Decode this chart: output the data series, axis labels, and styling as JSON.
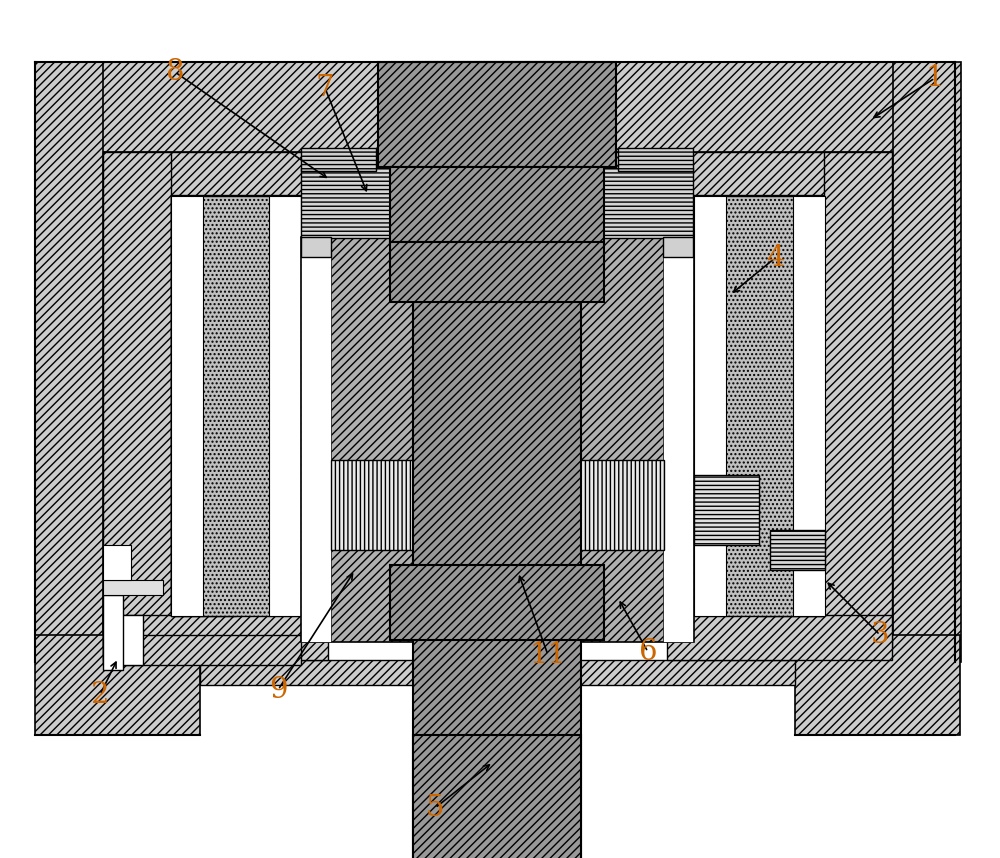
{
  "background_color": "#ffffff",
  "line_color": "#000000",
  "label_color": "#cc6600",
  "fig_width": 10.0,
  "fig_height": 8.58,
  "labels_data": [
    [
      "1",
      935,
      78,
      870,
      120
    ],
    [
      "2",
      100,
      695,
      118,
      658
    ],
    [
      "3",
      880,
      635,
      825,
      580
    ],
    [
      "4",
      775,
      258,
      730,
      295
    ],
    [
      "5",
      435,
      808,
      493,
      762
    ],
    [
      "6",
      648,
      652,
      618,
      598
    ],
    [
      "7",
      325,
      88,
      368,
      195
    ],
    [
      "8",
      175,
      72,
      330,
      180
    ],
    [
      "9",
      278,
      690,
      355,
      570
    ],
    [
      "11",
      548,
      655,
      518,
      572
    ]
  ]
}
